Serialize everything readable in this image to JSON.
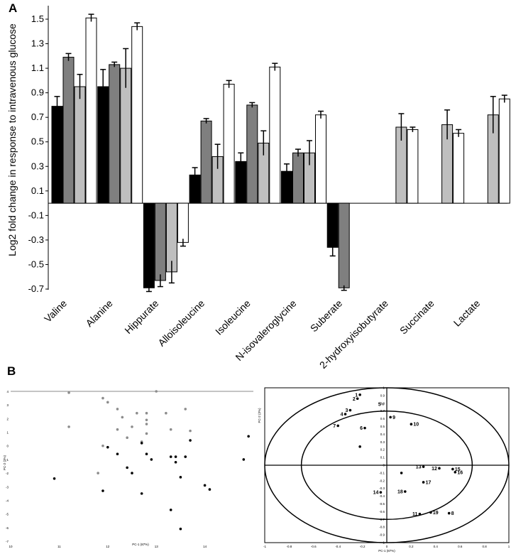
{
  "panels": {
    "a_label": "A",
    "b_label": "B"
  },
  "chart_data": [
    {
      "type": "bar",
      "ylabel": "Log2 fold change in response to intravenous glucose",
      "ylim": [
        -0.7,
        1.6
      ],
      "yticks": [
        "1.5",
        "1.3",
        "1.1",
        "0.9",
        "0.7",
        "0.5",
        "0.3",
        "0.1",
        "-0.1",
        "-0.3",
        "-0.5",
        "-0.7"
      ],
      "categories": [
        "Valine",
        "Alanine",
        "Hippurate",
        "Alloisoleucine",
        "Isoleucine",
        "N-isovaleroglycine",
        "Suberate",
        "2-hydroxyisobutyrate",
        "Succinate",
        "Lactate"
      ],
      "series_colors": [
        "#000000",
        "#7f7f7f",
        "#bfbfbf",
        "#ffffff"
      ],
      "series": [
        {
          "values": [
            0.79,
            0.95,
            -0.69,
            0.23,
            0.34,
            0.26,
            -0.36,
            0,
            0,
            0
          ],
          "errors": [
            0.08,
            0.14,
            0.03,
            0.06,
            0.07,
            0.06,
            0.07,
            0,
            0,
            0
          ]
        },
        {
          "values": [
            1.19,
            1.13,
            -0.63,
            0.67,
            0.8,
            0.41,
            -0.69,
            0,
            0,
            0
          ],
          "errors": [
            0.03,
            0.02,
            0.05,
            0.02,
            0.02,
            0.03,
            0.02,
            0,
            0,
            0
          ]
        },
        {
          "values": [
            0.95,
            1.1,
            -0.56,
            0.38,
            0.49,
            0.41,
            0,
            0.62,
            0.64,
            0.72
          ],
          "errors": [
            0.1,
            0.16,
            0.09,
            0.1,
            0.1,
            0.1,
            0,
            0.11,
            0.12,
            0.15
          ]
        },
        {
          "values": [
            1.51,
            1.44,
            -0.32,
            0.97,
            1.11,
            0.72,
            0,
            0.6,
            0.57,
            0.85
          ],
          "errors": [
            0.03,
            0.03,
            0.03,
            0.03,
            0.03,
            0.03,
            0,
            0.02,
            0.03,
            0.03
          ]
        }
      ]
    },
    {
      "type": "scatter",
      "xlabel": "PC-1 (87%)",
      "ylabel": "PC-2 (3%)",
      "xlim": [
        10,
        15
      ],
      "ylim": [
        -7,
        4
      ],
      "xticks": [
        "10",
        "11",
        "12",
        "13",
        "14"
      ],
      "yticks": [
        "4",
        "3",
        "2",
        "1",
        "0",
        "-1",
        "-2",
        "-3",
        "-4",
        "-5",
        "-6",
        "-7"
      ],
      "series": [
        {
          "color": "#8c8c8c",
          "points": [
            [
              11.2,
              3.9
            ],
            [
              11.2,
              1.4
            ],
            [
              11.9,
              3.5
            ],
            [
              12.0,
              3.2
            ],
            [
              12.2,
              2.7
            ],
            [
              12.3,
              2.1
            ],
            [
              12.2,
              1.2
            ],
            [
              12.6,
              2.4
            ],
            [
              12.5,
              1.4
            ],
            [
              12.8,
              2.4
            ],
            [
              12.8,
              1.9
            ],
            [
              12.8,
              1.6
            ],
            [
              13.0,
              4.0
            ],
            [
              13.2,
              2.4
            ],
            [
              13.3,
              1.2
            ],
            [
              13.6,
              2.7
            ],
            [
              13.7,
              1.1
            ],
            [
              12.4,
              0.6
            ],
            [
              12.8,
              0.9
            ],
            [
              11.9,
              0.0
            ],
            [
              11.8,
              -2.0
            ],
            [
              12.7,
              0.3
            ]
          ]
        },
        {
          "color": "#000000",
          "points": [
            [
              12.0,
              -0.1
            ],
            [
              12.2,
              -0.6
            ],
            [
              12.4,
              -1.6
            ],
            [
              12.5,
              -2.0
            ],
            [
              12.7,
              0.2
            ],
            [
              12.8,
              -0.6
            ],
            [
              12.9,
              -1.0
            ],
            [
              13.3,
              -0.8
            ],
            [
              13.4,
              -0.8
            ],
            [
              13.4,
              -1.2
            ],
            [
              13.3,
              -4.7
            ],
            [
              13.5,
              -2.3
            ],
            [
              13.6,
              -0.8
            ],
            [
              13.7,
              0.4
            ],
            [
              13.5,
              -6.1
            ],
            [
              14.0,
              -2.9
            ],
            [
              14.1,
              -3.2
            ],
            [
              14.9,
              0.7
            ],
            [
              14.8,
              -1.0
            ],
            [
              10.9,
              -2.4
            ],
            [
              11.9,
              -3.3
            ],
            [
              12.7,
              -3.5
            ]
          ]
        }
      ]
    },
    {
      "type": "scatter",
      "xlabel": "PC-1 (87%)",
      "ylabel": "PC-2 (3%)",
      "xlim": [
        -1,
        1
      ],
      "ylim": [
        -1,
        1
      ],
      "xticks": [
        "-1",
        "-0.8",
        "-0.6",
        "-0.4",
        "-0.2",
        "0",
        "0.2",
        "0.4",
        "0.6",
        "0.8",
        "1"
      ],
      "yticks": [
        "1",
        "0.9",
        "0.8",
        "0.7",
        "0.6",
        "0.5",
        "0.4",
        "0.3",
        "0.2",
        "0.1",
        "0",
        "-0.1",
        "-0.2",
        "-0.3",
        "-0.4",
        "-0.5",
        "-0.6",
        "-0.7",
        "-0.8",
        "-0.9",
        "-1"
      ],
      "points": [
        {
          "label": "1",
          "x": -0.22,
          "y": 0.91
        },
        {
          "label": "2",
          "x": -0.24,
          "y": 0.86
        },
        {
          "label": "3",
          "x": -0.3,
          "y": 0.71
        },
        {
          "label": "4",
          "x": -0.34,
          "y": 0.66
        },
        {
          "label": "5",
          "x": -0.03,
          "y": 0.79,
          "color": "#8c8c8c"
        },
        {
          "label": "6",
          "x": -0.18,
          "y": 0.48
        },
        {
          "label": "7",
          "x": -0.4,
          "y": 0.51
        },
        {
          "label": "8",
          "x": 0.51,
          "y": -0.62
        },
        {
          "label": "9",
          "x": 0.03,
          "y": 0.62
        },
        {
          "label": "10",
          "x": 0.2,
          "y": 0.53
        },
        {
          "label": "11",
          "x": 0.27,
          "y": -0.63
        },
        {
          "label": "12",
          "x": 0.43,
          "y": -0.04
        },
        {
          "label": "13",
          "x": 0.3,
          "y": -0.02
        },
        {
          "label": "14",
          "x": -0.05,
          "y": -0.35
        },
        {
          "label": "15",
          "x": 0.54,
          "y": -0.05
        },
        {
          "label": "16",
          "x": 0.56,
          "y": -0.09
        },
        {
          "label": "17",
          "x": 0.3,
          "y": -0.22
        },
        {
          "label": "18",
          "x": 0.15,
          "y": -0.34
        },
        {
          "label": "19",
          "x": 0.36,
          "y": -0.61
        },
        {
          "label": "",
          "x": -0.22,
          "y": 0.24
        },
        {
          "label": "",
          "x": 0.12,
          "y": -0.1
        }
      ]
    }
  ]
}
